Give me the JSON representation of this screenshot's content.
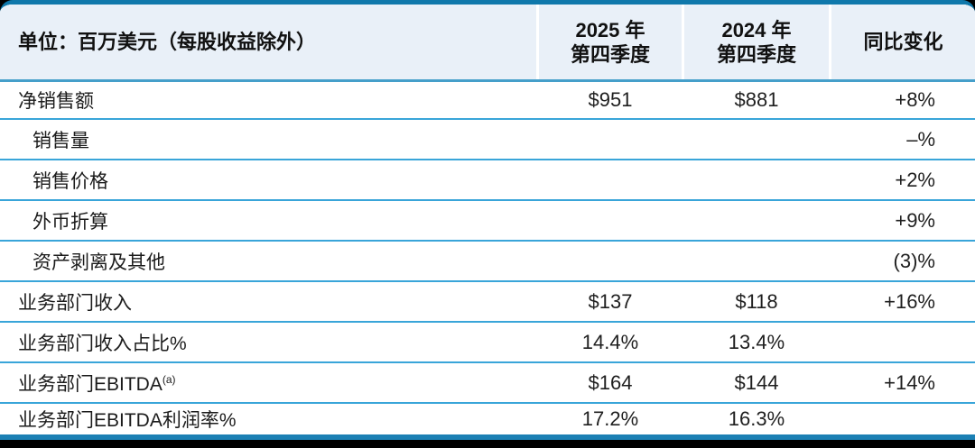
{
  "table": {
    "unit_header": "单位：百万美元（每股收益除外）",
    "columns": {
      "q4_2025": {
        "line1": "2025 年",
        "line2": "第四季度"
      },
      "q4_2024": {
        "line1": "2024 年",
        "line2": "第四季度"
      },
      "yoy": "同比变化"
    },
    "rows": [
      {
        "label": "净销售额",
        "indent": false,
        "q4_2025": "$951",
        "q4_2024": "$881",
        "yoy": "+8%"
      },
      {
        "label": "销售量",
        "indent": true,
        "q4_2025": "",
        "q4_2024": "",
        "yoy": "–%"
      },
      {
        "label": "销售价格",
        "indent": true,
        "q4_2025": "",
        "q4_2024": "",
        "yoy": "+2%"
      },
      {
        "label": "外币折算",
        "indent": true,
        "q4_2025": "",
        "q4_2024": "",
        "yoy": "+9%"
      },
      {
        "label": "资产剥离及其他",
        "indent": true,
        "q4_2025": "",
        "q4_2024": "",
        "yoy": "(3)%"
      },
      {
        "label": "业务部门收入",
        "indent": false,
        "q4_2025": "$137",
        "q4_2024": "$118",
        "yoy": "+16%"
      },
      {
        "label": "业务部门收入占比%",
        "indent": false,
        "q4_2025": "14.4%",
        "q4_2024": "13.4%",
        "yoy": ""
      },
      {
        "label": "业务部门EBITDA",
        "label_superscript": "(a)",
        "indent": false,
        "q4_2025": "$164",
        "q4_2024": "$144",
        "yoy": "+14%"
      },
      {
        "label": "业务部门EBITDA利润率%",
        "indent": false,
        "q4_2025": "17.2%",
        "q4_2024": "16.3%",
        "yoy": ""
      }
    ],
    "colors": {
      "page_background": "#000000",
      "top_border": "#0f78ab",
      "header_background": "#e9f0f8",
      "header_divider": "#459fca",
      "row_divider": "#39a5d9",
      "bottom_border": "#1b80b4",
      "text": "#1b1b1b"
    }
  }
}
